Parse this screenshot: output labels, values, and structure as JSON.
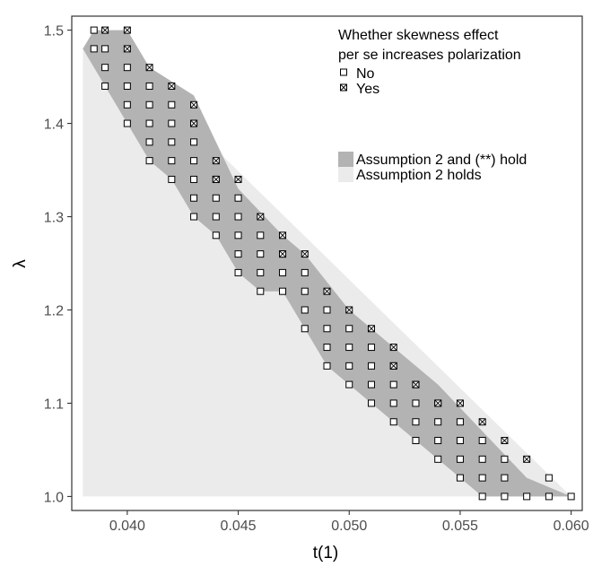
{
  "chart_data": {
    "type": "scatter",
    "xlabel": "t(1)",
    "ylabel": "λ",
    "xlim": [
      0.0375,
      0.0605
    ],
    "ylim": [
      0.985,
      1.515
    ],
    "x_ticks": [
      0.04,
      0.045,
      0.05,
      0.055,
      0.06
    ],
    "x_tick_labels": [
      "0.040",
      "0.045",
      "0.050",
      "0.055",
      "0.060"
    ],
    "y_ticks": [
      1.0,
      1.1,
      1.2,
      1.3,
      1.4,
      1.5
    ],
    "y_tick_labels": [
      "1.0",
      "1.1",
      "1.2",
      "1.3",
      "1.4",
      "1.5"
    ],
    "grid": false,
    "regions": [
      {
        "name": "Assumption 2 holds",
        "color": "#ebebeb",
        "polygon": [
          [
            0.038,
            1.0
          ],
          [
            0.038,
            1.48
          ],
          [
            0.0385,
            1.5
          ],
          [
            0.06,
            1.0
          ]
        ]
      },
      {
        "name": "Assumption 2 and (**) hold",
        "color": "#b3b3b3",
        "upper": [
          [
            0.038,
            1.48
          ],
          [
            0.0385,
            1.5
          ],
          [
            0.04,
            1.5
          ],
          [
            0.041,
            1.46
          ],
          [
            0.043,
            1.43
          ],
          [
            0.045,
            1.33
          ],
          [
            0.047,
            1.28
          ],
          [
            0.048,
            1.26
          ],
          [
            0.05,
            1.2
          ],
          [
            0.052,
            1.16
          ],
          [
            0.054,
            1.12
          ],
          [
            0.058,
            1.02
          ],
          [
            0.06,
            1.0
          ]
        ],
        "lower": [
          [
            0.038,
            1.48
          ],
          [
            0.039,
            1.44
          ],
          [
            0.04,
            1.4
          ],
          [
            0.041,
            1.36
          ],
          [
            0.042,
            1.34
          ],
          [
            0.043,
            1.3
          ],
          [
            0.044,
            1.28
          ],
          [
            0.045,
            1.24
          ],
          [
            0.046,
            1.22
          ],
          [
            0.047,
            1.22
          ],
          [
            0.048,
            1.18
          ],
          [
            0.049,
            1.14
          ],
          [
            0.05,
            1.12
          ],
          [
            0.051,
            1.1
          ],
          [
            0.052,
            1.08
          ],
          [
            0.053,
            1.06
          ],
          [
            0.054,
            1.04
          ],
          [
            0.055,
            1.02
          ],
          [
            0.056,
            1.0
          ],
          [
            0.06,
            1.0
          ]
        ]
      }
    ],
    "points_no": [
      [
        0.0385,
        1.5
      ],
      [
        0.0385,
        1.48
      ],
      [
        0.039,
        1.48
      ],
      [
        0.039,
        1.46
      ],
      [
        0.039,
        1.44
      ],
      [
        0.04,
        1.46
      ],
      [
        0.04,
        1.44
      ],
      [
        0.04,
        1.42
      ],
      [
        0.04,
        1.4
      ],
      [
        0.041,
        1.44
      ],
      [
        0.041,
        1.42
      ],
      [
        0.041,
        1.4
      ],
      [
        0.041,
        1.38
      ],
      [
        0.041,
        1.36
      ],
      [
        0.042,
        1.42
      ],
      [
        0.042,
        1.4
      ],
      [
        0.042,
        1.38
      ],
      [
        0.042,
        1.36
      ],
      [
        0.042,
        1.34
      ],
      [
        0.043,
        1.4
      ],
      [
        0.043,
        1.38
      ],
      [
        0.043,
        1.36
      ],
      [
        0.043,
        1.34
      ],
      [
        0.043,
        1.32
      ],
      [
        0.043,
        1.3
      ],
      [
        0.044,
        1.34
      ],
      [
        0.044,
        1.32
      ],
      [
        0.044,
        1.3
      ],
      [
        0.044,
        1.28
      ],
      [
        0.045,
        1.32
      ],
      [
        0.045,
        1.3
      ],
      [
        0.045,
        1.28
      ],
      [
        0.045,
        1.26
      ],
      [
        0.045,
        1.24
      ],
      [
        0.046,
        1.28
      ],
      [
        0.046,
        1.26
      ],
      [
        0.046,
        1.24
      ],
      [
        0.046,
        1.22
      ],
      [
        0.047,
        1.26
      ],
      [
        0.047,
        1.24
      ],
      [
        0.047,
        1.22
      ],
      [
        0.048,
        1.24
      ],
      [
        0.048,
        1.22
      ],
      [
        0.048,
        1.2
      ],
      [
        0.048,
        1.18
      ],
      [
        0.049,
        1.2
      ],
      [
        0.049,
        1.18
      ],
      [
        0.049,
        1.16
      ],
      [
        0.049,
        1.14
      ],
      [
        0.05,
        1.18
      ],
      [
        0.05,
        1.16
      ],
      [
        0.05,
        1.14
      ],
      [
        0.05,
        1.12
      ],
      [
        0.051,
        1.16
      ],
      [
        0.051,
        1.14
      ],
      [
        0.051,
        1.12
      ],
      [
        0.051,
        1.1
      ],
      [
        0.052,
        1.14
      ],
      [
        0.052,
        1.12
      ],
      [
        0.052,
        1.1
      ],
      [
        0.052,
        1.08
      ],
      [
        0.053,
        1.12
      ],
      [
        0.053,
        1.1
      ],
      [
        0.053,
        1.08
      ],
      [
        0.053,
        1.06
      ],
      [
        0.054,
        1.1
      ],
      [
        0.054,
        1.08
      ],
      [
        0.054,
        1.06
      ],
      [
        0.054,
        1.04
      ],
      [
        0.055,
        1.08
      ],
      [
        0.055,
        1.06
      ],
      [
        0.055,
        1.04
      ],
      [
        0.055,
        1.02
      ],
      [
        0.056,
        1.06
      ],
      [
        0.056,
        1.04
      ],
      [
        0.056,
        1.02
      ],
      [
        0.056,
        1.0
      ],
      [
        0.057,
        1.04
      ],
      [
        0.057,
        1.02
      ],
      [
        0.057,
        1.0
      ],
      [
        0.058,
        1.0
      ],
      [
        0.059,
        1.02
      ],
      [
        0.059,
        1.0
      ],
      [
        0.06,
        1.0
      ]
    ],
    "points_yes": [
      [
        0.039,
        1.5
      ],
      [
        0.04,
        1.5
      ],
      [
        0.04,
        1.48
      ],
      [
        0.041,
        1.46
      ],
      [
        0.042,
        1.44
      ],
      [
        0.043,
        1.42
      ],
      [
        0.043,
        1.4
      ],
      [
        0.044,
        1.36
      ],
      [
        0.044,
        1.34
      ],
      [
        0.045,
        1.34
      ],
      [
        0.046,
        1.3
      ],
      [
        0.047,
        1.28
      ],
      [
        0.047,
        1.26
      ],
      [
        0.048,
        1.26
      ],
      [
        0.049,
        1.22
      ],
      [
        0.05,
        1.2
      ],
      [
        0.051,
        1.18
      ],
      [
        0.052,
        1.16
      ],
      [
        0.052,
        1.14
      ],
      [
        0.053,
        1.12
      ],
      [
        0.054,
        1.1
      ],
      [
        0.055,
        1.1
      ],
      [
        0.056,
        1.08
      ],
      [
        0.057,
        1.06
      ],
      [
        0.058,
        1.04
      ]
    ]
  },
  "legend": {
    "point_title_line1": "Whether skewness effect",
    "point_title_line2": "per se increases polarization",
    "no_label": "No",
    "yes_label": "Yes",
    "region_dark_label": "Assumption 2 and (**) hold",
    "region_light_label": "Assumption 2 holds"
  },
  "colors": {
    "region_dark": "#b3b3b3",
    "region_light": "#ebebeb",
    "marker_stroke": "#000000",
    "marker_fill": "#ffffff"
  }
}
